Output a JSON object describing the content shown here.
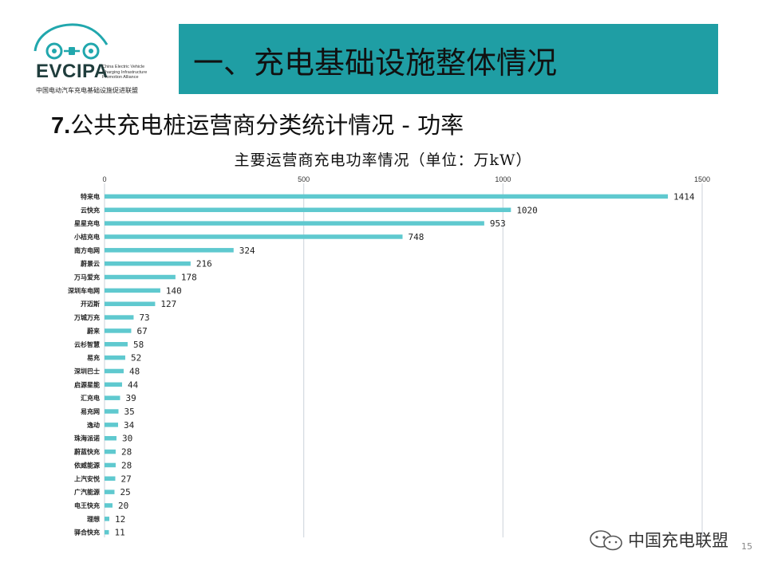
{
  "header": {
    "logo_text": "EVCIPA",
    "logo_subtitle": "China Electric Vehicle Charging Infrastructure Promotion Alliance",
    "logo_cn": "中国电动汽车充电基础设施促进联盟",
    "banner_title": "一、充电基础设施整体情况"
  },
  "section": {
    "number": "7.",
    "title": "公共充电桩运营商分类统计情况 - 功率"
  },
  "footer": {
    "watermark": "中国充电联盟",
    "page_number": "15"
  },
  "colors": {
    "bar": "#5fc9cf",
    "banner": "#1f9ea4"
  },
  "chart_data": {
    "type": "bar",
    "orientation": "horizontal",
    "title": "主要运营商充电功率情况（单位：万kW）",
    "xlim": [
      0,
      1500
    ],
    "xticks": [
      0,
      500,
      1000,
      1500
    ],
    "grid": true,
    "categories": [
      "特来电",
      "云快充",
      "星星充电",
      "小桔充电",
      "南方电网",
      "蔚景云",
      "万马爱充",
      "深圳车电网",
      "开迈斯",
      "万城万充",
      "蔚来",
      "云杉智慧",
      "易充",
      "深圳巴士",
      "启源星能",
      "汇充电",
      "易充网",
      "逸动",
      "珠海派诺",
      "蔚蓝快充",
      "依威能源",
      "上汽安悦",
      "广汽能源",
      "电王快充",
      "理想",
      "驿合快充"
    ],
    "values": [
      1414,
      1020,
      953,
      748,
      324,
      216,
      178,
      140,
      127,
      73,
      67,
      58,
      52,
      48,
      44,
      39,
      35,
      34,
      30,
      28,
      28,
      27,
      25,
      20,
      12,
      11
    ]
  }
}
